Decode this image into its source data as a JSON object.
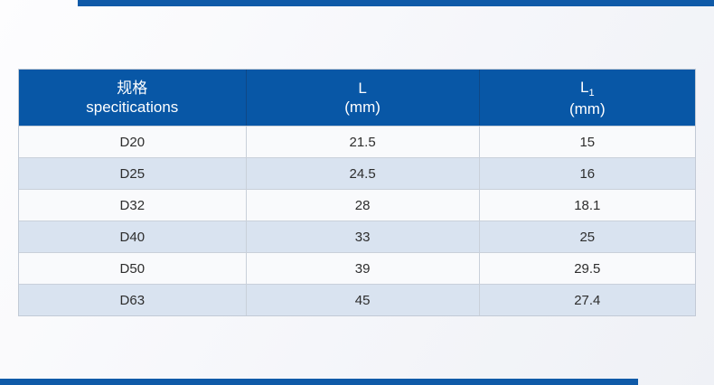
{
  "page": {
    "accent_color": "#0f5aa8",
    "header_bg": "#0857a6",
    "row_alt_bg": "#d9e3f0",
    "row_bg": "#f9fafc"
  },
  "table": {
    "header": {
      "columns": [
        {
          "line1": "规格",
          "line2": "specitications"
        },
        {
          "line1": "L",
          "line2": "(mm)"
        },
        {
          "line1": "L",
          "sub": "1",
          "line2": "(mm)"
        }
      ]
    },
    "rows": [
      {
        "spec": "D20",
        "l": "21.5",
        "l1": "15"
      },
      {
        "spec": "D25",
        "l": "24.5",
        "l1": "16"
      },
      {
        "spec": "D32",
        "l": "28",
        "l1": "18.1"
      },
      {
        "spec": "D40",
        "l": "33",
        "l1": "25"
      },
      {
        "spec": "D50",
        "l": "39",
        "l1": "29.5"
      },
      {
        "spec": "D63",
        "l": "45",
        "l1": "27.4"
      }
    ]
  },
  "chart_data": {
    "type": "table",
    "title": "",
    "columns": [
      "规格 specitications",
      "L (mm)",
      "L1 (mm)"
    ],
    "rows": [
      [
        "D20",
        21.5,
        15
      ],
      [
        "D25",
        24.5,
        16
      ],
      [
        "D32",
        28,
        18.1
      ],
      [
        "D40",
        33,
        25
      ],
      [
        "D50",
        39,
        29.5
      ],
      [
        "D63",
        45,
        27.4
      ]
    ]
  }
}
